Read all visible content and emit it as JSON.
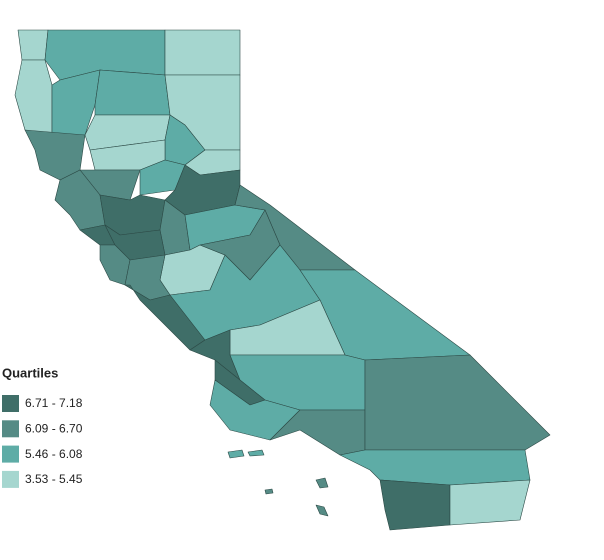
{
  "legend": {
    "title": "Quartiles",
    "items": [
      {
        "label": "6.71 - 7.18",
        "color": "#3f6e68"
      },
      {
        "label": "6.09 - 6.70",
        "color": "#558b85"
      },
      {
        "label": "5.46 - 6.08",
        "color": "#5eaca6"
      },
      {
        "label": "3.53 - 5.45",
        "color": "#a5d6cf"
      }
    ]
  }
}
